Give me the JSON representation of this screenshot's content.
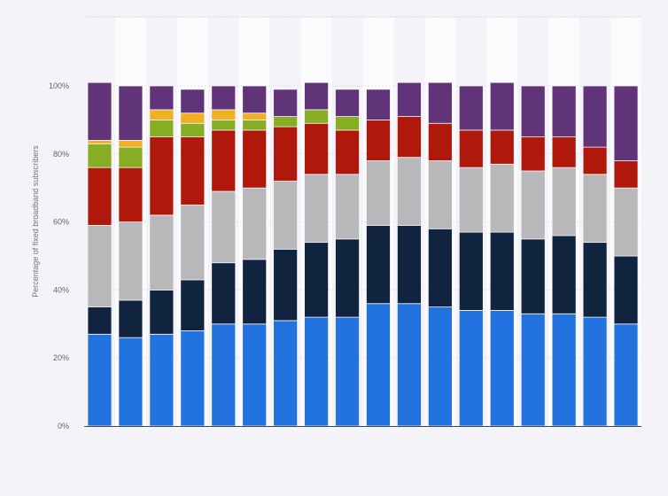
{
  "chart_data": {
    "type": "bar",
    "stacked": true,
    "title": "",
    "xlabel": "",
    "ylabel": "Percentage of fixed broadband subscribers",
    "ylim": [
      0,
      100
    ],
    "yticks": [
      "0%",
      "20%",
      "40%",
      "60%",
      "80%",
      "100%"
    ],
    "grid": true,
    "legend": "none",
    "categories": [
      "",
      "",
      "",
      "",
      "",
      "",
      "",
      "",
      "",
      "",
      "",
      "",
      "",
      "",
      "",
      "",
      "",
      ""
    ],
    "series": [
      {
        "color": "#2272e0",
        "values": [
          27,
          26,
          27,
          28,
          30,
          30,
          31,
          32,
          32,
          36,
          36,
          35,
          34,
          34,
          33,
          33,
          32,
          30
        ]
      },
      {
        "color": "#10243f",
        "values": [
          8,
          11,
          13,
          15,
          18,
          19,
          21,
          22,
          23,
          23,
          23,
          23,
          23,
          23,
          22,
          23,
          22,
          20
        ]
      },
      {
        "color": "#b8b7ba",
        "values": [
          24,
          23,
          22,
          22,
          21,
          21,
          20,
          20,
          19,
          19,
          20,
          20,
          19,
          20,
          20,
          20,
          20,
          20
        ]
      },
      {
        "color": "#b0180c",
        "values": [
          17,
          16,
          23,
          20,
          18,
          17,
          16,
          15,
          13,
          12,
          12,
          11,
          11,
          10,
          10,
          9,
          8,
          8
        ]
      },
      {
        "color": "#86ad23",
        "values": [
          7,
          6,
          5,
          4,
          3,
          3,
          3,
          4,
          4,
          0,
          0,
          0,
          0,
          0,
          0,
          0,
          0,
          0
        ]
      },
      {
        "color": "#f0b020",
        "values": [
          1,
          2,
          3,
          3,
          3,
          2,
          0,
          0,
          0,
          0,
          0,
          0,
          0,
          0,
          0,
          0,
          0,
          0
        ]
      },
      {
        "color": "#613379",
        "values": [
          17,
          16,
          7,
          7,
          7,
          8,
          8,
          8,
          8,
          9,
          10,
          12,
          13,
          14,
          15,
          15,
          18,
          22
        ]
      }
    ]
  }
}
